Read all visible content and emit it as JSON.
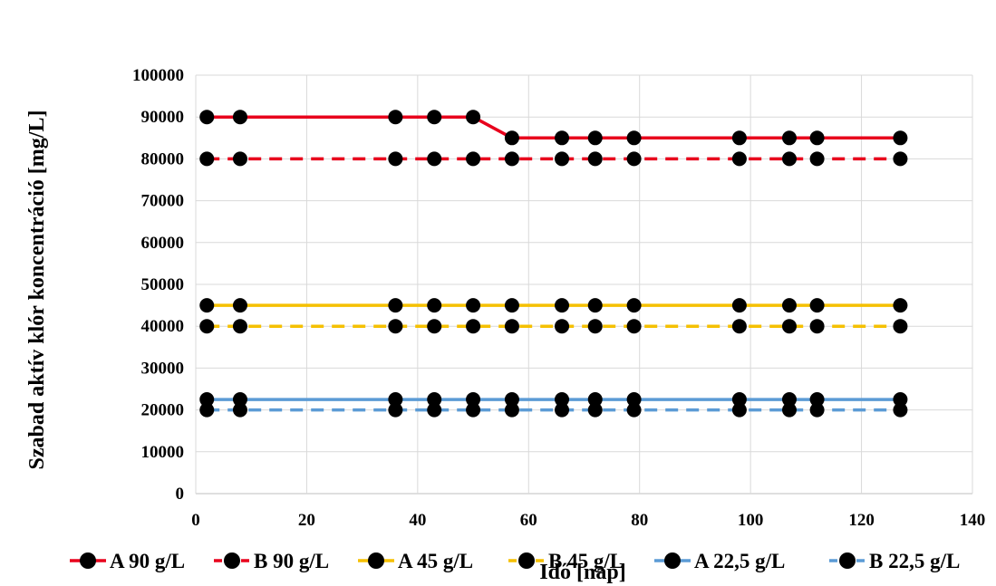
{
  "chart_data": {
    "type": "line",
    "title": "",
    "xlabel": "Idő [nap]",
    "ylabel": "Szabad aktív klór koncentráció [mg/L]",
    "xlim": [
      0,
      140
    ],
    "ylim": [
      0,
      100000
    ],
    "xticks": [
      "0",
      "20",
      "40",
      "60",
      "80",
      "100",
      "120",
      "140"
    ],
    "yticks": [
      "0",
      "10000",
      "20000",
      "30000",
      "40000",
      "50000",
      "60000",
      "70000",
      "80000",
      "90000",
      "100000"
    ],
    "grid": true,
    "legend_position": "bottom",
    "series": [
      {
        "name": "A 90 g/L",
        "color": "#e8001c",
        "dash": "solid",
        "x": [
          2,
          8,
          36,
          43,
          50,
          57,
          66,
          72,
          79,
          98,
          107,
          112,
          127
        ],
        "y": [
          90000,
          90000,
          90000,
          90000,
          90000,
          85000,
          85000,
          85000,
          85000,
          85000,
          85000,
          85000,
          85000
        ]
      },
      {
        "name": "B 90 g/L",
        "color": "#e8001c",
        "dash": "dashed",
        "x": [
          2,
          8,
          36,
          43,
          50,
          57,
          66,
          72,
          79,
          98,
          107,
          112,
          127
        ],
        "y": [
          80000,
          80000,
          80000,
          80000,
          80000,
          80000,
          80000,
          80000,
          80000,
          80000,
          80000,
          80000,
          80000
        ]
      },
      {
        "name": "A 45 g/L",
        "color": "#f5c000",
        "dash": "solid",
        "x": [
          2,
          8,
          36,
          43,
          50,
          57,
          66,
          72,
          79,
          98,
          107,
          112,
          127
        ],
        "y": [
          45000,
          45000,
          45000,
          45000,
          45000,
          45000,
          45000,
          45000,
          45000,
          45000,
          45000,
          45000,
          45000
        ]
      },
      {
        "name": "B 45 g/L",
        "color": "#f5c000",
        "dash": "dashed",
        "x": [
          2,
          8,
          36,
          43,
          50,
          57,
          66,
          72,
          79,
          98,
          107,
          112,
          127
        ],
        "y": [
          40000,
          40000,
          40000,
          40000,
          40000,
          40000,
          40000,
          40000,
          40000,
          40000,
          40000,
          40000,
          40000
        ]
      },
      {
        "name": "A 22,5 g/L",
        "color": "#5b9bd5",
        "dash": "solid",
        "x": [
          2,
          8,
          36,
          43,
          50,
          57,
          66,
          72,
          79,
          98,
          107,
          112,
          127
        ],
        "y": [
          22500,
          22500,
          22500,
          22500,
          22500,
          22500,
          22500,
          22500,
          22500,
          22500,
          22500,
          22500,
          22500
        ]
      },
      {
        "name": "B 22,5 g/L",
        "color": "#5b9bd5",
        "dash": "dashed",
        "x": [
          2,
          8,
          36,
          43,
          50,
          57,
          66,
          72,
          79,
          98,
          107,
          112,
          127
        ],
        "y": [
          20000,
          20000,
          20000,
          20000,
          20000,
          20000,
          20000,
          20000,
          20000,
          20000,
          20000,
          20000,
          20000
        ]
      }
    ]
  }
}
